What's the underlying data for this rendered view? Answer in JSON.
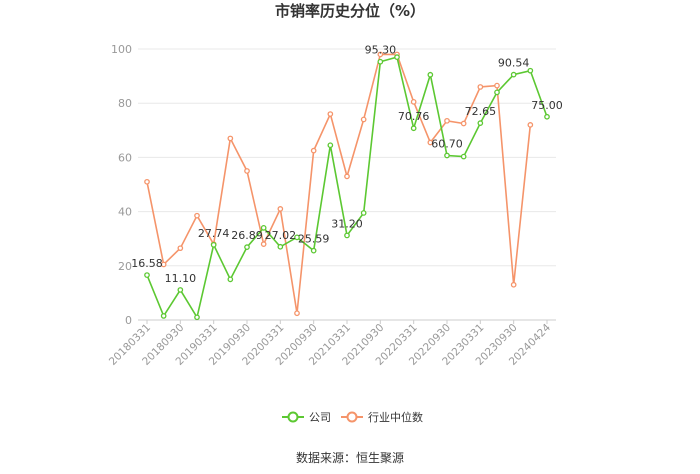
{
  "chart_data": {
    "type": "line",
    "title": "市销率历史分位（%）",
    "source_text": "数据来源：恒生聚源",
    "ylim": [
      0,
      100
    ],
    "yticks": [
      0,
      20,
      40,
      60,
      80,
      100
    ],
    "x_tick_labels": [
      "20180331",
      "20180930",
      "20190331",
      "20190930",
      "20200331",
      "20200930",
      "20210331",
      "20210930",
      "20220331",
      "20220930",
      "20230331",
      "20230930",
      "20240424"
    ],
    "x": [
      "20180331",
      "20180630",
      "20180930",
      "20181231",
      "20190331",
      "20190630",
      "20190930",
      "20191231",
      "20200331",
      "20200630",
      "20200930",
      "20201231",
      "20210331",
      "20210630",
      "20210930",
      "20211231",
      "20220331",
      "20220630",
      "20220930",
      "20221231",
      "20230331",
      "20230630",
      "20230930",
      "20231231",
      "20240424"
    ],
    "grid": true,
    "legend_position": "bottom",
    "series": [
      {
        "name": "公司",
        "color": "#5cc832",
        "values": [
          16.58,
          1.5,
          11.1,
          1.0,
          27.74,
          15.0,
          26.89,
          34.0,
          27.02,
          30.5,
          25.59,
          64.5,
          31.2,
          39.5,
          95.3,
          97.0,
          70.76,
          90.5,
          60.7,
          60.3,
          72.65,
          84.0,
          90.54,
          92.0,
          75.0
        ],
        "labels": [
          "16.58",
          "",
          "11.10",
          "",
          "27.74",
          "",
          "26.89",
          "",
          "27.02",
          "",
          "25.59",
          "",
          "31.20",
          "",
          "95.30",
          "",
          "70.76",
          "",
          "60.70",
          "",
          "72.65",
          "",
          "90.54",
          "",
          "75.00"
        ]
      },
      {
        "name": "行业中位数",
        "color": "#f5946a",
        "values": [
          51.0,
          20.5,
          26.5,
          38.5,
          28.0,
          67.0,
          55.0,
          28.0,
          41.0,
          2.5,
          62.5,
          76.0,
          53.0,
          74.0,
          98.0,
          98.0,
          80.5,
          65.5,
          73.5,
          72.5,
          86.0,
          86.5,
          13.0,
          72.0,
          null
        ],
        "labels": []
      }
    ]
  }
}
